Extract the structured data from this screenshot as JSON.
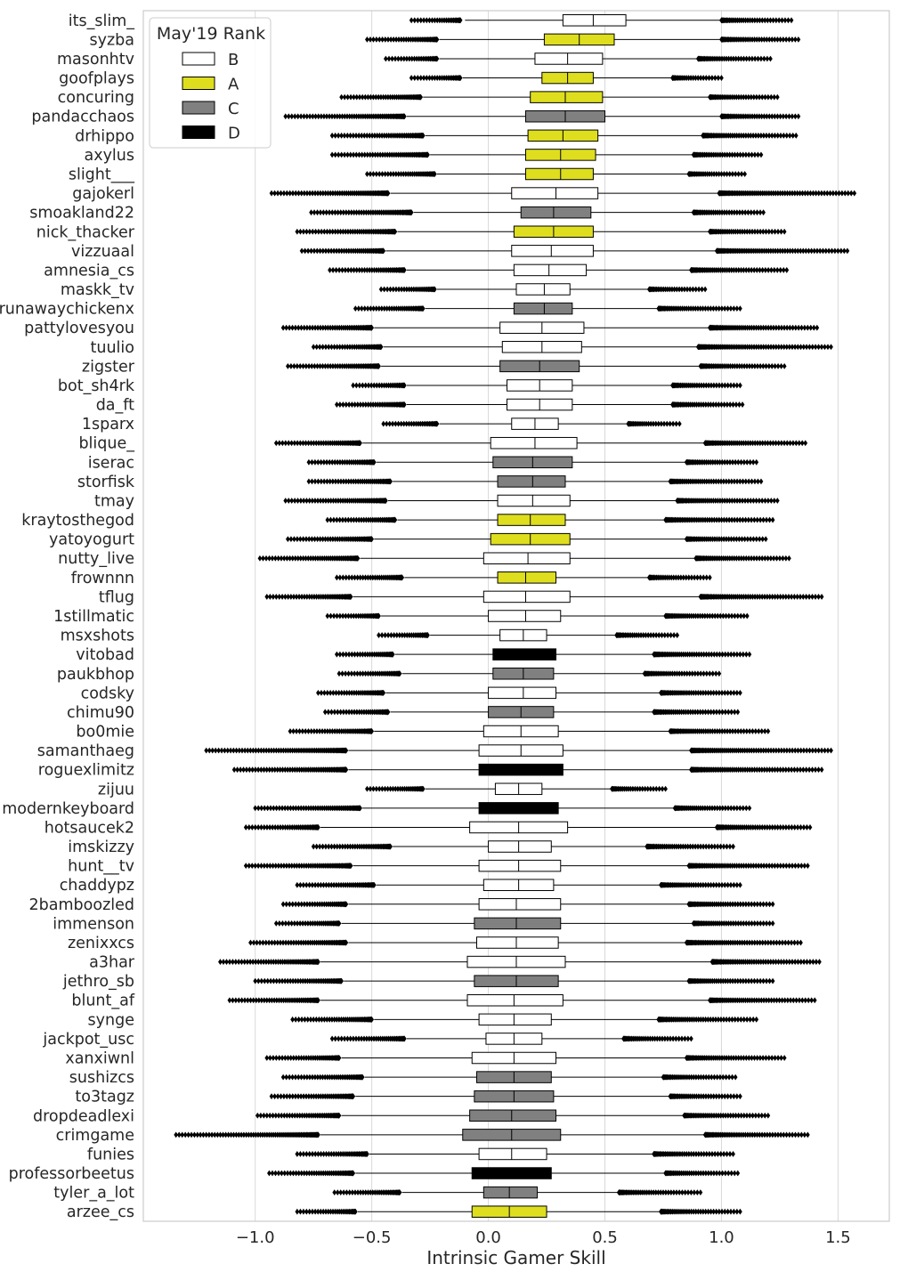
{
  "chart_data": {
    "type": "boxplot",
    "orientation": "horizontal",
    "xlabel": "Intrinsic Gamer Skill",
    "ylabel": "",
    "xlim": [
      -1.48,
      1.72
    ],
    "xticks": [
      -1.0,
      -0.5,
      0.0,
      0.5,
      1.0,
      1.5
    ],
    "xtick_labels": [
      "−1.0",
      "−0.5",
      "0.0",
      "0.5",
      "1.0",
      "1.5"
    ],
    "grid": "vertical",
    "legend": {
      "title": "May'19 Rank",
      "placement": "top-left",
      "entries": [
        {
          "label": "B",
          "color": "#ffffff"
        },
        {
          "label": "A",
          "color": "#dede1e"
        },
        {
          "label": "C",
          "color": "#808080"
        },
        {
          "label": "D",
          "color": "#000000"
        }
      ]
    },
    "players": [
      {
        "name": "its_slim_",
        "rank": "B",
        "q1": 0.32,
        "median": 0.45,
        "q3": 0.59,
        "wlo": -0.1,
        "whi": 1.0,
        "flo": [
          -0.33,
          -0.12
        ],
        "fhi": [
          1.0,
          1.3
        ]
      },
      {
        "name": "syzba",
        "rank": "A",
        "q1": 0.24,
        "median": 0.39,
        "q3": 0.54,
        "wlo": -0.21,
        "whi": 1.0,
        "flo": [
          -0.52,
          -0.22
        ],
        "fhi": [
          1.0,
          1.33
        ]
      },
      {
        "name": "masonhtv",
        "rank": "B",
        "q1": 0.2,
        "median": 0.34,
        "q3": 0.49,
        "wlo": -0.21,
        "whi": 0.9,
        "flo": [
          -0.44,
          -0.22
        ],
        "fhi": [
          0.9,
          1.21
        ]
      },
      {
        "name": "goofplays",
        "rank": "A",
        "q1": 0.23,
        "median": 0.34,
        "q3": 0.45,
        "wlo": -0.11,
        "whi": 0.79,
        "flo": [
          -0.33,
          -0.12
        ],
        "fhi": [
          0.79,
          1.0
        ]
      },
      {
        "name": "concuring",
        "rank": "A",
        "q1": 0.18,
        "median": 0.33,
        "q3": 0.49,
        "wlo": -0.28,
        "whi": 0.95,
        "flo": [
          -0.63,
          -0.29
        ],
        "fhi": [
          0.95,
          1.24
        ]
      },
      {
        "name": "pandacchaos",
        "rank": "C",
        "q1": 0.16,
        "median": 0.33,
        "q3": 0.5,
        "wlo": -0.35,
        "whi": 1.0,
        "flo": [
          -0.87,
          -0.36
        ],
        "fhi": [
          1.0,
          1.33
        ]
      },
      {
        "name": "drhippo",
        "rank": "A",
        "q1": 0.17,
        "median": 0.32,
        "q3": 0.47,
        "wlo": -0.27,
        "whi": 0.92,
        "flo": [
          -0.67,
          -0.28
        ],
        "fhi": [
          0.92,
          1.32
        ]
      },
      {
        "name": "axylus",
        "rank": "A",
        "q1": 0.16,
        "median": 0.31,
        "q3": 0.46,
        "wlo": -0.25,
        "whi": 0.88,
        "flo": [
          -0.67,
          -0.26
        ],
        "fhi": [
          0.88,
          1.17
        ]
      },
      {
        "name": "slight___",
        "rank": "A",
        "q1": 0.16,
        "median": 0.31,
        "q3": 0.45,
        "wlo": -0.22,
        "whi": 0.86,
        "flo": [
          -0.52,
          -0.23
        ],
        "fhi": [
          0.86,
          1.1
        ]
      },
      {
        "name": "gajokerl",
        "rank": "B",
        "q1": 0.1,
        "median": 0.29,
        "q3": 0.47,
        "wlo": -0.42,
        "whi": 0.99,
        "flo": [
          -0.93,
          -0.43
        ],
        "fhi": [
          0.99,
          1.57
        ]
      },
      {
        "name": "smoakland22",
        "rank": "C",
        "q1": 0.14,
        "median": 0.28,
        "q3": 0.44,
        "wlo": -0.32,
        "whi": 0.88,
        "flo": [
          -0.76,
          -0.33
        ],
        "fhi": [
          0.88,
          1.18
        ]
      },
      {
        "name": "nick_thacker",
        "rank": "A",
        "q1": 0.11,
        "median": 0.28,
        "q3": 0.45,
        "wlo": -0.39,
        "whi": 0.95,
        "flo": [
          -0.82,
          -0.4
        ],
        "fhi": [
          0.95,
          1.27
        ]
      },
      {
        "name": "vizzuaal",
        "rank": "B",
        "q1": 0.1,
        "median": 0.27,
        "q3": 0.45,
        "wlo": -0.44,
        "whi": 0.98,
        "flo": [
          -0.8,
          -0.45
        ],
        "fhi": [
          0.98,
          1.54
        ]
      },
      {
        "name": "amnesia_cs",
        "rank": "B",
        "q1": 0.11,
        "median": 0.26,
        "q3": 0.42,
        "wlo": -0.35,
        "whi": 0.87,
        "flo": [
          -0.68,
          -0.36
        ],
        "fhi": [
          0.87,
          1.28
        ]
      },
      {
        "name": "maskk_tv",
        "rank": "B",
        "q1": 0.12,
        "median": 0.24,
        "q3": 0.35,
        "wlo": -0.22,
        "whi": 0.69,
        "flo": [
          -0.46,
          -0.23
        ],
        "fhi": [
          0.69,
          0.93
        ]
      },
      {
        "name": "runawaychickenx",
        "rank": "C",
        "q1": 0.11,
        "median": 0.24,
        "q3": 0.36,
        "wlo": -0.27,
        "whi": 0.73,
        "flo": [
          -0.57,
          -0.28
        ],
        "fhi": [
          0.73,
          1.08
        ]
      },
      {
        "name": "pattylovesyou",
        "rank": "B",
        "q1": 0.05,
        "median": 0.23,
        "q3": 0.41,
        "wlo": -0.49,
        "whi": 0.95,
        "flo": [
          -0.88,
          -0.5
        ],
        "fhi": [
          0.95,
          1.41
        ]
      },
      {
        "name": "tuulio",
        "rank": "B",
        "q1": 0.06,
        "median": 0.23,
        "q3": 0.4,
        "wlo": -0.45,
        "whi": 0.9,
        "flo": [
          -0.75,
          -0.46
        ],
        "fhi": [
          0.9,
          1.47
        ]
      },
      {
        "name": "zigster",
        "rank": "C",
        "q1": 0.05,
        "median": 0.22,
        "q3": 0.39,
        "wlo": -0.46,
        "whi": 0.91,
        "flo": [
          -0.86,
          -0.47
        ],
        "fhi": [
          0.91,
          1.27
        ]
      },
      {
        "name": "bot_sh4rk",
        "rank": "B",
        "q1": 0.08,
        "median": 0.22,
        "q3": 0.36,
        "wlo": -0.35,
        "whi": 0.79,
        "flo": [
          -0.58,
          -0.36
        ],
        "fhi": [
          0.79,
          1.08
        ]
      },
      {
        "name": "da_ft",
        "rank": "B",
        "q1": 0.08,
        "median": 0.22,
        "q3": 0.36,
        "wlo": -0.35,
        "whi": 0.79,
        "flo": [
          -0.65,
          -0.36
        ],
        "fhi": [
          0.79,
          1.09
        ]
      },
      {
        "name": "1sparx",
        "rank": "B",
        "q1": 0.1,
        "median": 0.2,
        "q3": 0.3,
        "wlo": -0.21,
        "whi": 0.6,
        "flo": [
          -0.45,
          -0.22
        ],
        "fhi": [
          0.6,
          0.82
        ]
      },
      {
        "name": "blique_",
        "rank": "B",
        "q1": 0.01,
        "median": 0.2,
        "q3": 0.38,
        "wlo": -0.54,
        "whi": 0.93,
        "flo": [
          -0.91,
          -0.55
        ],
        "fhi": [
          0.93,
          1.36
        ]
      },
      {
        "name": "iserac",
        "rank": "C",
        "q1": 0.02,
        "median": 0.19,
        "q3": 0.36,
        "wlo": -0.48,
        "whi": 0.85,
        "flo": [
          -0.77,
          -0.49
        ],
        "fhi": [
          0.85,
          1.15
        ]
      },
      {
        "name": "storfisk",
        "rank": "C",
        "q1": 0.04,
        "median": 0.19,
        "q3": 0.33,
        "wlo": -0.41,
        "whi": 0.78,
        "flo": [
          -0.77,
          -0.42
        ],
        "fhi": [
          0.78,
          1.17
        ]
      },
      {
        "name": "tmay",
        "rank": "B",
        "q1": 0.04,
        "median": 0.19,
        "q3": 0.35,
        "wlo": -0.43,
        "whi": 0.81,
        "flo": [
          -0.87,
          -0.44
        ],
        "fhi": [
          0.81,
          1.24
        ]
      },
      {
        "name": "kraytosthegod",
        "rank": "A",
        "q1": 0.04,
        "median": 0.18,
        "q3": 0.33,
        "wlo": -0.39,
        "whi": 0.76,
        "flo": [
          -0.69,
          -0.4
        ],
        "fhi": [
          0.76,
          1.22
        ]
      },
      {
        "name": "yatoyogurt",
        "rank": "A",
        "q1": 0.01,
        "median": 0.18,
        "q3": 0.35,
        "wlo": -0.49,
        "whi": 0.85,
        "flo": [
          -0.86,
          -0.5
        ],
        "fhi": [
          0.85,
          1.19
        ]
      },
      {
        "name": "nutty_live",
        "rank": "B",
        "q1": -0.02,
        "median": 0.17,
        "q3": 0.35,
        "wlo": -0.55,
        "whi": 0.89,
        "flo": [
          -0.98,
          -0.56
        ],
        "fhi": [
          0.89,
          1.29
        ]
      },
      {
        "name": "frownnn",
        "rank": "A",
        "q1": 0.04,
        "median": 0.16,
        "q3": 0.29,
        "wlo": -0.36,
        "whi": 0.69,
        "flo": [
          -0.65,
          -0.37
        ],
        "fhi": [
          0.69,
          0.95
        ]
      },
      {
        "name": "tflug",
        "rank": "B",
        "q1": -0.02,
        "median": 0.16,
        "q3": 0.35,
        "wlo": -0.58,
        "whi": 0.91,
        "flo": [
          -0.95,
          -0.59
        ],
        "fhi": [
          0.91,
          1.43
        ]
      },
      {
        "name": "1stillmatic",
        "rank": "B",
        "q1": 0.0,
        "median": 0.16,
        "q3": 0.31,
        "wlo": -0.46,
        "whi": 0.76,
        "flo": [
          -0.69,
          -0.47
        ],
        "fhi": [
          0.76,
          1.11
        ]
      },
      {
        "name": "msxshots",
        "rank": "B",
        "q1": 0.05,
        "median": 0.15,
        "q3": 0.25,
        "wlo": -0.25,
        "whi": 0.55,
        "flo": [
          -0.47,
          -0.26
        ],
        "fhi": [
          0.55,
          0.81
        ]
      },
      {
        "name": "vitobad",
        "rank": "D",
        "q1": 0.02,
        "median": 0.15,
        "q3": 0.29,
        "wlo": -0.4,
        "whi": 0.71,
        "flo": [
          -0.65,
          -0.41
        ],
        "fhi": [
          0.71,
          1.12
        ]
      },
      {
        "name": "paukbhop",
        "rank": "C",
        "q1": 0.02,
        "median": 0.15,
        "q3": 0.28,
        "wlo": -0.37,
        "whi": 0.67,
        "flo": [
          -0.64,
          -0.38
        ],
        "fhi": [
          0.67,
          0.99
        ]
      },
      {
        "name": "codsky",
        "rank": "B",
        "q1": 0.0,
        "median": 0.15,
        "q3": 0.29,
        "wlo": -0.44,
        "whi": 0.74,
        "flo": [
          -0.73,
          -0.45
        ],
        "fhi": [
          0.74,
          1.08
        ]
      },
      {
        "name": "chimu90",
        "rank": "C",
        "q1": 0.0,
        "median": 0.14,
        "q3": 0.28,
        "wlo": -0.42,
        "whi": 0.71,
        "flo": [
          -0.7,
          -0.43
        ],
        "fhi": [
          0.71,
          1.07
        ]
      },
      {
        "name": "bo0mie",
        "rank": "B",
        "q1": -0.02,
        "median": 0.14,
        "q3": 0.3,
        "wlo": -0.49,
        "whi": 0.78,
        "flo": [
          -0.85,
          -0.5
        ],
        "fhi": [
          0.78,
          1.2
        ]
      },
      {
        "name": "samanthaeg",
        "rank": "B",
        "q1": -0.04,
        "median": 0.14,
        "q3": 0.32,
        "wlo": -0.6,
        "whi": 0.87,
        "flo": [
          -1.21,
          -0.61
        ],
        "fhi": [
          0.87,
          1.47
        ]
      },
      {
        "name": "roguexlimitz",
        "rank": "D",
        "q1": -0.04,
        "median": 0.14,
        "q3": 0.32,
        "wlo": -0.6,
        "whi": 0.87,
        "flo": [
          -1.09,
          -0.61
        ],
        "fhi": [
          0.87,
          1.43
        ]
      },
      {
        "name": "zijuu",
        "rank": "B",
        "q1": 0.03,
        "median": 0.13,
        "q3": 0.23,
        "wlo": -0.27,
        "whi": 0.53,
        "flo": [
          -0.52,
          -0.28
        ],
        "fhi": [
          0.53,
          0.76
        ]
      },
      {
        "name": "modernkeyboard",
        "rank": "D",
        "q1": -0.04,
        "median": 0.13,
        "q3": 0.3,
        "wlo": -0.54,
        "whi": 0.8,
        "flo": [
          -1.0,
          -0.55
        ],
        "fhi": [
          0.8,
          1.12
        ]
      },
      {
        "name": "hotsaucek2",
        "rank": "B",
        "q1": -0.08,
        "median": 0.13,
        "q3": 0.34,
        "wlo": -0.72,
        "whi": 0.98,
        "flo": [
          -1.04,
          -0.73
        ],
        "fhi": [
          0.98,
          1.38
        ]
      },
      {
        "name": "imskizzy",
        "rank": "B",
        "q1": 0.0,
        "median": 0.13,
        "q3": 0.27,
        "wlo": -0.41,
        "whi": 0.68,
        "flo": [
          -0.75,
          -0.42
        ],
        "fhi": [
          0.68,
          1.05
        ]
      },
      {
        "name": "hunt__tv",
        "rank": "B",
        "q1": -0.04,
        "median": 0.13,
        "q3": 0.31,
        "wlo": -0.58,
        "whi": 0.86,
        "flo": [
          -1.04,
          -0.59
        ],
        "fhi": [
          0.86,
          1.37
        ]
      },
      {
        "name": "chaddypz",
        "rank": "B",
        "q1": -0.02,
        "median": 0.13,
        "q3": 0.28,
        "wlo": -0.48,
        "whi": 0.74,
        "flo": [
          -0.82,
          -0.49
        ],
        "fhi": [
          0.74,
          1.08
        ]
      },
      {
        "name": "2bamboozled",
        "rank": "B",
        "q1": -0.04,
        "median": 0.12,
        "q3": 0.31,
        "wlo": -0.6,
        "whi": 0.86,
        "flo": [
          -0.88,
          -0.61
        ],
        "fhi": [
          0.86,
          1.22
        ]
      },
      {
        "name": "immenson",
        "rank": "C",
        "q1": -0.06,
        "median": 0.12,
        "q3": 0.31,
        "wlo": -0.63,
        "whi": 0.88,
        "flo": [
          -0.91,
          -0.64
        ],
        "fhi": [
          0.88,
          1.22
        ]
      },
      {
        "name": "zenixxcs",
        "rank": "B",
        "q1": -0.05,
        "median": 0.12,
        "q3": 0.3,
        "wlo": -0.6,
        "whi": 0.85,
        "flo": [
          -1.02,
          -0.61
        ],
        "fhi": [
          0.85,
          1.34
        ]
      },
      {
        "name": "a3har",
        "rank": "B",
        "q1": -0.09,
        "median": 0.12,
        "q3": 0.33,
        "wlo": -0.72,
        "whi": 0.96,
        "flo": [
          -1.15,
          -0.73
        ],
        "fhi": [
          0.96,
          1.42
        ]
      },
      {
        "name": "jethro_sb",
        "rank": "C",
        "q1": -0.06,
        "median": 0.12,
        "q3": 0.3,
        "wlo": -0.62,
        "whi": 0.86,
        "flo": [
          -1.0,
          -0.63
        ],
        "fhi": [
          0.86,
          1.22
        ]
      },
      {
        "name": "blunt_af",
        "rank": "B",
        "q1": -0.09,
        "median": 0.11,
        "q3": 0.32,
        "wlo": -0.72,
        "whi": 0.95,
        "flo": [
          -1.11,
          -0.73
        ],
        "fhi": [
          0.95,
          1.4
        ]
      },
      {
        "name": "synge",
        "rank": "B",
        "q1": -0.04,
        "median": 0.11,
        "q3": 0.27,
        "wlo": -0.49,
        "whi": 0.73,
        "flo": [
          -0.84,
          -0.5
        ],
        "fhi": [
          0.73,
          1.15
        ]
      },
      {
        "name": "jackpot_usc",
        "rank": "B",
        "q1": -0.01,
        "median": 0.11,
        "q3": 0.23,
        "wlo": -0.35,
        "whi": 0.58,
        "flo": [
          -0.67,
          -0.36
        ],
        "fhi": [
          0.58,
          0.87
        ]
      },
      {
        "name": "xanxiwnl",
        "rank": "B",
        "q1": -0.07,
        "median": 0.11,
        "q3": 0.29,
        "wlo": -0.63,
        "whi": 0.85,
        "flo": [
          -0.95,
          -0.64
        ],
        "fhi": [
          0.85,
          1.27
        ]
      },
      {
        "name": "sushizcs",
        "rank": "C",
        "q1": -0.05,
        "median": 0.11,
        "q3": 0.27,
        "wlo": -0.53,
        "whi": 0.75,
        "flo": [
          -0.88,
          -0.54
        ],
        "fhi": [
          0.75,
          1.06
        ]
      },
      {
        "name": "to3tagz",
        "rank": "C",
        "q1": -0.06,
        "median": 0.11,
        "q3": 0.28,
        "wlo": -0.57,
        "whi": 0.78,
        "flo": [
          -0.93,
          -0.58
        ],
        "fhi": [
          0.78,
          1.08
        ]
      },
      {
        "name": "dropdeadlexi",
        "rank": "C",
        "q1": -0.08,
        "median": 0.1,
        "q3": 0.29,
        "wlo": -0.63,
        "whi": 0.84,
        "flo": [
          -0.99,
          -0.64
        ],
        "fhi": [
          0.84,
          1.2
        ]
      },
      {
        "name": "crimgame",
        "rank": "C",
        "q1": -0.11,
        "median": 0.1,
        "q3": 0.31,
        "wlo": -0.72,
        "whi": 0.93,
        "flo": [
          -1.34,
          -0.73
        ],
        "fhi": [
          0.93,
          1.37
        ]
      },
      {
        "name": "funies",
        "rank": "B",
        "q1": -0.04,
        "median": 0.1,
        "q3": 0.25,
        "wlo": -0.51,
        "whi": 0.71,
        "flo": [
          -0.82,
          -0.52
        ],
        "fhi": [
          0.71,
          1.05
        ]
      },
      {
        "name": "professorbeetus",
        "rank": "D",
        "q1": -0.07,
        "median": 0.1,
        "q3": 0.27,
        "wlo": -0.57,
        "whi": 0.76,
        "flo": [
          -0.94,
          -0.58
        ],
        "fhi": [
          0.76,
          1.07
        ]
      },
      {
        "name": "tyler_a_lot",
        "rank": "C",
        "q1": -0.02,
        "median": 0.09,
        "q3": 0.21,
        "wlo": -0.37,
        "whi": 0.56,
        "flo": [
          -0.66,
          -0.38
        ],
        "fhi": [
          0.56,
          0.91
        ]
      },
      {
        "name": "arzee_cs",
        "rank": "A",
        "q1": -0.07,
        "median": 0.09,
        "q3": 0.25,
        "wlo": -0.56,
        "whi": 0.74,
        "flo": [
          -0.82,
          -0.57
        ],
        "fhi": [
          0.74,
          1.08
        ]
      }
    ]
  }
}
